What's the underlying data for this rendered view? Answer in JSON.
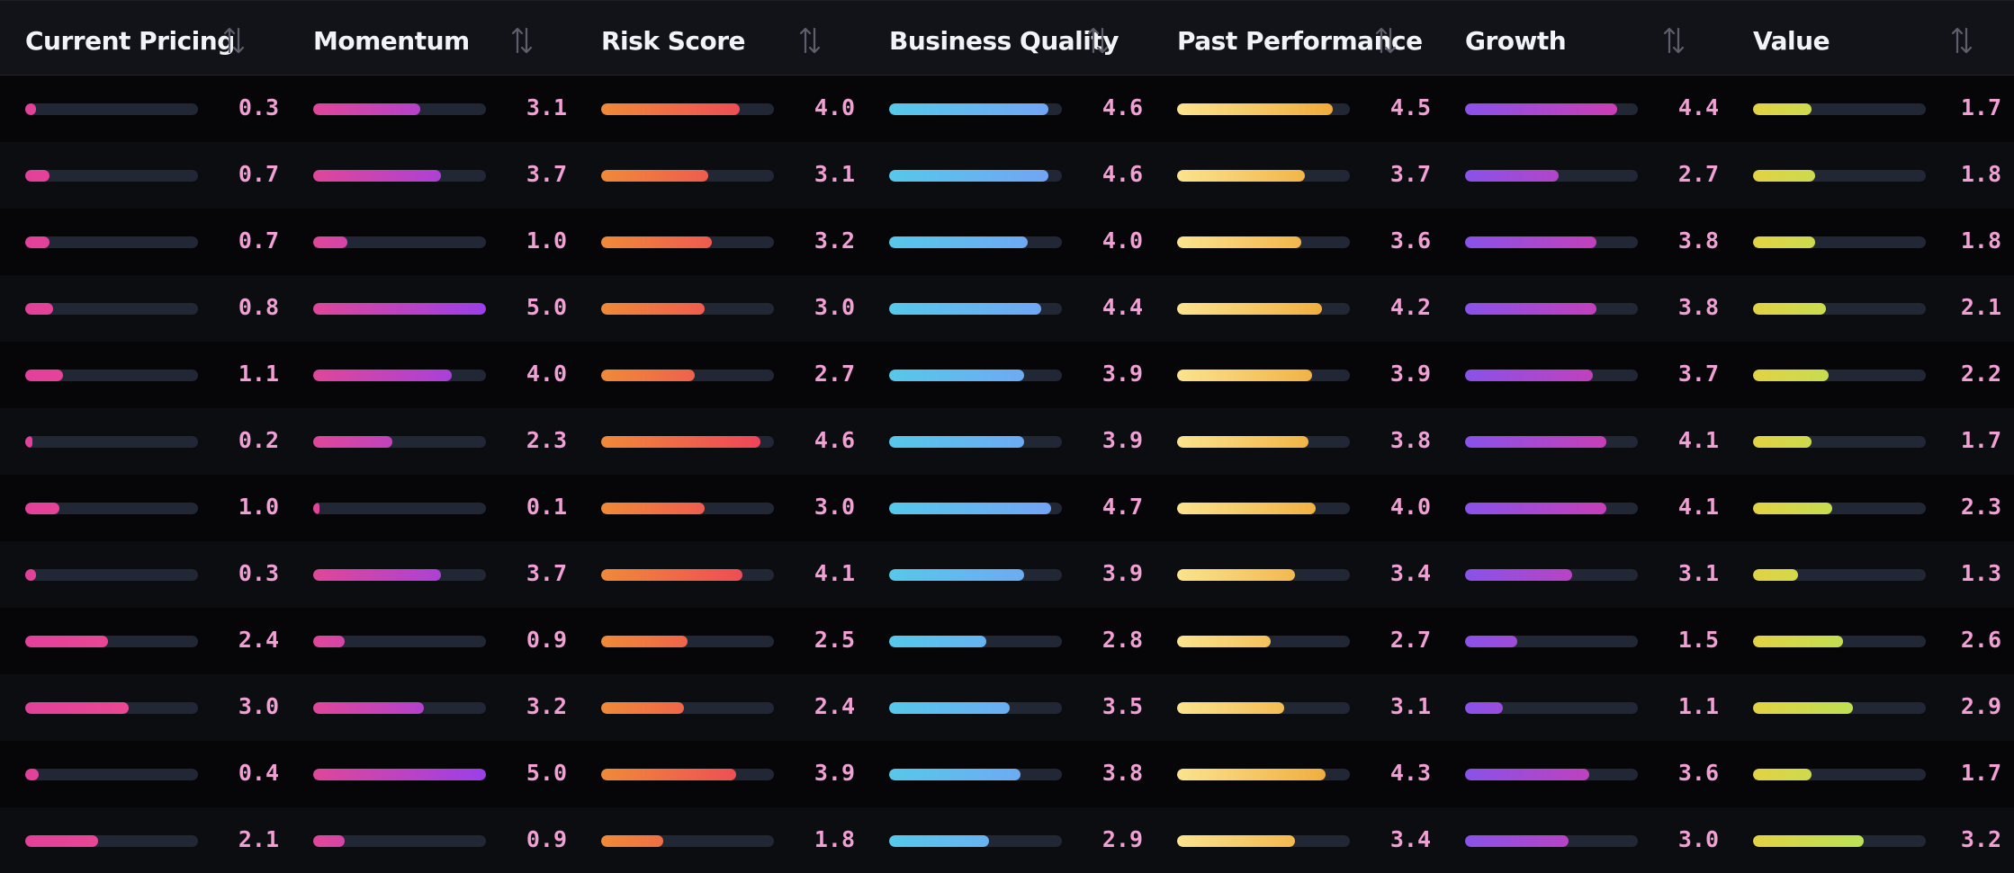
{
  "columns": [
    {
      "label": "Current Pricing",
      "max": 5,
      "gradient": [
        "#e3409b",
        "#ee4d8e"
      ]
    },
    {
      "label": "Momentum",
      "max": 5,
      "gradient": [
        "#e04699",
        "#9b3fea"
      ]
    },
    {
      "label": "Risk Score",
      "max": 5,
      "gradient": [
        "#f08a38",
        "#ee3f5c"
      ]
    },
    {
      "label": "Business Quality",
      "max": 5,
      "gradient": [
        "#56c8ea",
        "#74a2f6"
      ]
    },
    {
      "label": "Past Performance",
      "max": 5,
      "gradient": [
        "#fbe38e",
        "#efa531"
      ]
    },
    {
      "label": "Growth",
      "max": 5,
      "gradient": [
        "#8a52ea",
        "#d43aad"
      ]
    },
    {
      "label": "Value",
      "max": 5,
      "gradient": [
        "#e2d244",
        "#a6ea5e"
      ]
    }
  ],
  "rows": [
    [
      "0.3",
      "3.1",
      "4.0",
      "4.6",
      "4.5",
      "4.4",
      "1.7"
    ],
    [
      "0.7",
      "3.7",
      "3.1",
      "4.6",
      "3.7",
      "2.7",
      "1.8"
    ],
    [
      "0.7",
      "1.0",
      "3.2",
      "4.0",
      "3.6",
      "3.8",
      "1.8"
    ],
    [
      "0.8",
      "5.0",
      "3.0",
      "4.4",
      "4.2",
      "3.8",
      "2.1"
    ],
    [
      "1.1",
      "4.0",
      "2.7",
      "3.9",
      "3.9",
      "3.7",
      "2.2"
    ],
    [
      "0.2",
      "2.3",
      "4.6",
      "3.9",
      "3.8",
      "4.1",
      "1.7"
    ],
    [
      "1.0",
      "0.1",
      "3.0",
      "4.7",
      "4.0",
      "4.1",
      "2.3"
    ],
    [
      "0.3",
      "3.7",
      "4.1",
      "3.9",
      "3.4",
      "3.1",
      "1.3"
    ],
    [
      "2.4",
      "0.9",
      "2.5",
      "2.8",
      "2.7",
      "1.5",
      "2.6"
    ],
    [
      "3.0",
      "3.2",
      "2.4",
      "3.5",
      "3.1",
      "1.1",
      "2.9"
    ],
    [
      "0.4",
      "5.0",
      "3.9",
      "3.8",
      "4.3",
      "3.6",
      "1.7"
    ],
    [
      "2.1",
      "0.9",
      "1.8",
      "2.9",
      "3.4",
      "3.0",
      "3.2"
    ]
  ],
  "colors": {
    "background": "#060608",
    "row_alt": "#0c0d11",
    "header_bg": "#121318",
    "track": "#222736",
    "value_text": "#f19fd4",
    "header_text": "#f2f3f7",
    "sort_icon": "#5d606b"
  },
  "icons": {
    "sort": "sort-arrows-icon"
  }
}
